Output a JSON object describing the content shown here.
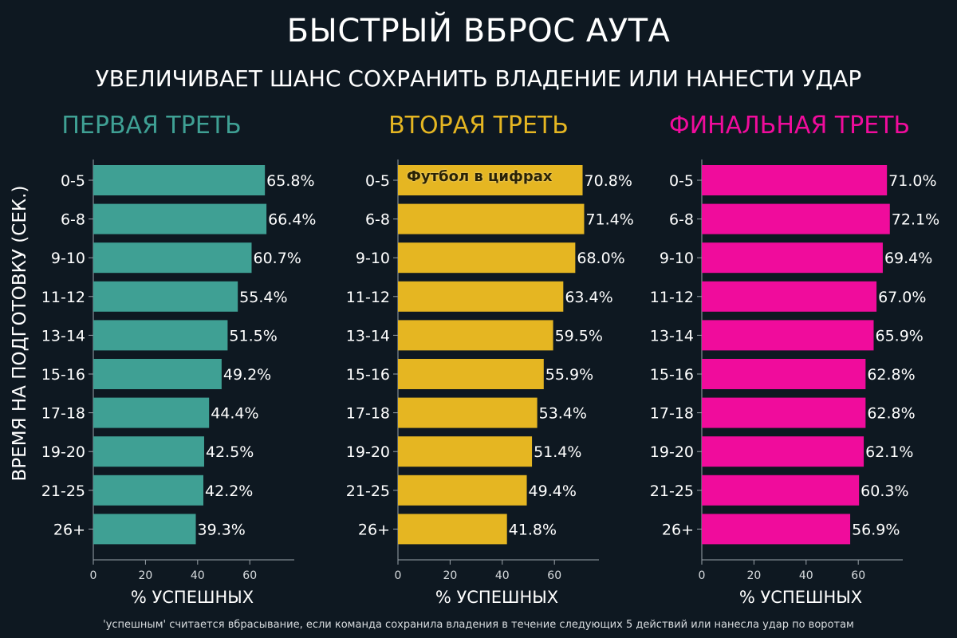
{
  "title": "БЫСТРЫЙ ВБРОС АУТА",
  "subtitle": "УВЕЛИЧИВАЕТ ШАНС СОХРАНИТЬ ВЛАДЕНИЕ ИЛИ НАНЕСТИ УДАР",
  "y_axis_label": "ВРЕМЯ НА ПОДГОТОВКУ (СЕК.)",
  "footnote": "'успешным' считается вбрасывание, если команда сохранила владения в течение следующих 5 действий или нанесла удар по воротам",
  "watermark": "Футбол в цифрах",
  "colors": {
    "background": "#0e1821",
    "first_third": "#3fa094",
    "second_third": "#e5b622",
    "final_third": "#f00c9c"
  },
  "chart_data": [
    {
      "type": "bar",
      "orientation": "horizontal",
      "title": "ПЕРВАЯ ТРЕТЬ",
      "color": "#3fa094",
      "categories": [
        "0-5",
        "6-8",
        "9-10",
        "11-12",
        "13-14",
        "15-16",
        "17-18",
        "19-20",
        "21-25",
        "26+"
      ],
      "values": [
        65.8,
        66.4,
        60.7,
        55.4,
        51.5,
        49.2,
        44.4,
        42.5,
        42.2,
        39.3
      ],
      "value_labels": [
        "65.8%",
        "66.4%",
        "60.7%",
        "55.4%",
        "51.5%",
        "49.2%",
        "44.4%",
        "42.5%",
        "42.2%",
        "39.3%"
      ],
      "xlabel": "% УСПЕШНЫХ",
      "xlim": [
        0,
        77
      ],
      "xticks": [
        0,
        20,
        40,
        60
      ]
    },
    {
      "type": "bar",
      "orientation": "horizontal",
      "title": "ВТОРАЯ ТРЕТЬ",
      "color": "#e5b622",
      "categories": [
        "0-5",
        "6-8",
        "9-10",
        "11-12",
        "13-14",
        "15-16",
        "17-18",
        "19-20",
        "21-25",
        "26+"
      ],
      "values": [
        70.8,
        71.4,
        68.0,
        63.4,
        59.5,
        55.9,
        53.4,
        51.4,
        49.4,
        41.8
      ],
      "value_labels": [
        "70.8%",
        "71.4%",
        "68.0%",
        "63.4%",
        "59.5%",
        "55.9%",
        "53.4%",
        "51.4%",
        "49.4%",
        "41.8%"
      ],
      "xlabel": "% УСПЕШНЫХ",
      "xlim": [
        0,
        77
      ],
      "xticks": [
        0,
        20,
        40,
        60
      ]
    },
    {
      "type": "bar",
      "orientation": "horizontal",
      "title": "ФИНАЛЬНАЯ ТРЕТЬ",
      "color": "#f00c9c",
      "categories": [
        "0-5",
        "6-8",
        "9-10",
        "11-12",
        "13-14",
        "15-16",
        "17-18",
        "19-20",
        "21-25",
        "26+"
      ],
      "values": [
        71.0,
        72.1,
        69.4,
        67.0,
        65.9,
        62.8,
        62.8,
        62.1,
        60.3,
        56.9
      ],
      "value_labels": [
        "71.0%",
        "72.1%",
        "69.4%",
        "67.0%",
        "65.9%",
        "62.8%",
        "62.8%",
        "62.1%",
        "60.3%",
        "56.9%"
      ],
      "xlabel": "% УСПЕШНЫХ",
      "xlim": [
        0,
        77
      ],
      "xticks": [
        0,
        20,
        40,
        60
      ]
    }
  ]
}
